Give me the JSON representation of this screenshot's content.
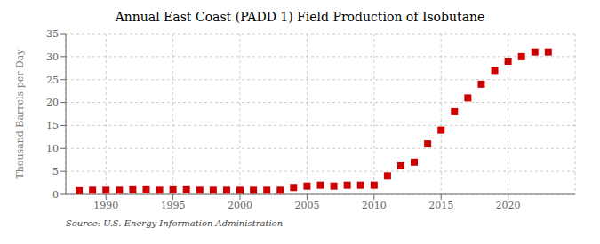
{
  "chart_data": {
    "type": "scatter",
    "title": "Annual East Coast (PADD 1) Field Production of Isobutane",
    "ylabel": "Thousand Barrels per Day",
    "annotations": [
      "Source: U.S. Energy Information Administration"
    ],
    "x": [
      1988,
      1989,
      1990,
      1991,
      1992,
      1993,
      1994,
      1995,
      1996,
      1997,
      1998,
      1999,
      2000,
      2001,
      2002,
      2003,
      2004,
      2005,
      2006,
      2007,
      2008,
      2009,
      2010,
      2011,
      2012,
      2013,
      2014,
      2015,
      2016,
      2017,
      2018,
      2019,
      2020,
      2021,
      2022,
      2023
    ],
    "values": [
      0.8,
      0.9,
      0.9,
      0.9,
      1.0,
      1.0,
      0.9,
      1.0,
      1.0,
      0.9,
      0.9,
      0.9,
      0.9,
      0.9,
      0.9,
      0.9,
      1.5,
      1.8,
      2.0,
      1.8,
      2.0,
      2.0,
      2.0,
      4.0,
      6.2,
      7.0,
      11.0,
      14.0,
      18.0,
      21.0,
      24.0,
      27.0,
      29.0,
      30.0,
      31.0,
      31.0
    ],
    "color": "#cc0000",
    "marker": "square",
    "xlim": [
      1987,
      2025
    ],
    "ylim": [
      0,
      35
    ],
    "xticks": [
      1990,
      1995,
      2000,
      2005,
      2010,
      2015,
      2020
    ],
    "yticks": [
      0,
      5,
      10,
      15,
      20,
      25,
      30,
      35
    ],
    "grid": true
  }
}
